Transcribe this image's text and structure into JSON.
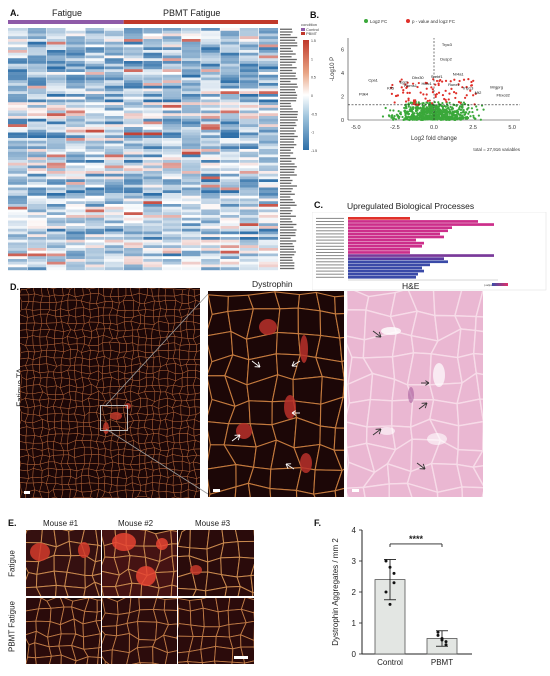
{
  "panels": {
    "A": "A.",
    "B": "B.",
    "C": "C.",
    "D": "D.",
    "E": "E.",
    "F": "F."
  },
  "heatmap": {
    "group_labels": [
      "Fatigue",
      "PBMT Fatigue"
    ],
    "legend_title": "condition",
    "legend_items": [
      "Control",
      "PBMT"
    ],
    "scale_ticks": [
      "1.5",
      "1",
      "0.5",
      "0",
      "-0.5",
      "-1",
      "-1.5"
    ],
    "columns": 14,
    "rows": 88,
    "colors": {
      "high": "#c0392b",
      "mid": "#ffffff",
      "low": "#2e6fa8",
      "group1": "#8e5aa8",
      "group2": "#c0392b"
    }
  },
  "volcano": {
    "legend": [
      "Log2 FC",
      "p - value and log2 FC"
    ],
    "ylabel": "-Log10 P",
    "xlabel": "Log2 fold change",
    "xticks": [
      "-5.0",
      "-2.5",
      "0.0",
      "2.5",
      "5.0"
    ],
    "yticks": [
      "0",
      "2",
      "4",
      "6"
    ],
    "total": "total = 27,916 variables",
    "genes": [
      "Trpc3",
      "Dusp2",
      "Cpa1",
      "Egr1",
      "Hcfc1",
      "Runx1",
      "Trip13",
      "Mrgprg",
      "Dhx30",
      "Srebf1",
      "Rbms1",
      "Klf5",
      "Nr4a1",
      "Fbxo32",
      "Pdk4",
      "Mt2"
    ],
    "colors": {
      "ns": "#3aa83a",
      "sig": "#e0302a"
    }
  },
  "bio": {
    "title": "Upregulated Biological Processes",
    "legend_title": "p.adjust",
    "colors": {
      "high": "#e0306a",
      "low": "#3a4aa8"
    }
  },
  "micro": {
    "d_side_label": "Fatigue TA",
    "d_titles": [
      "Dystrophin",
      "H&E"
    ],
    "e_cols": [
      "Mouse #1",
      "Mouse #2",
      "Mouse #3"
    ],
    "e_rows": [
      "Fatigue",
      "PBMT Fatigue"
    ]
  },
  "chart_data": {
    "type": "bar",
    "categories": [
      "Control",
      "PBMT"
    ],
    "values": [
      2.4,
      0.5
    ],
    "errors": [
      0.65,
      0.25
    ],
    "points": [
      [
        3.0,
        2.8,
        2.3,
        2.0,
        1.6,
        2.6
      ],
      [
        0.7,
        0.5,
        0.3,
        0.6,
        0.45,
        0.4
      ]
    ],
    "ylabel": "Dystrophin Aggregates / mm 2",
    "ylim": [
      0,
      4
    ],
    "yticks": [
      0,
      1,
      2,
      3,
      4
    ],
    "significance": "****",
    "colors": {
      "bar": "#e3e6e3",
      "edge": "#555555",
      "point": "#111111"
    }
  }
}
